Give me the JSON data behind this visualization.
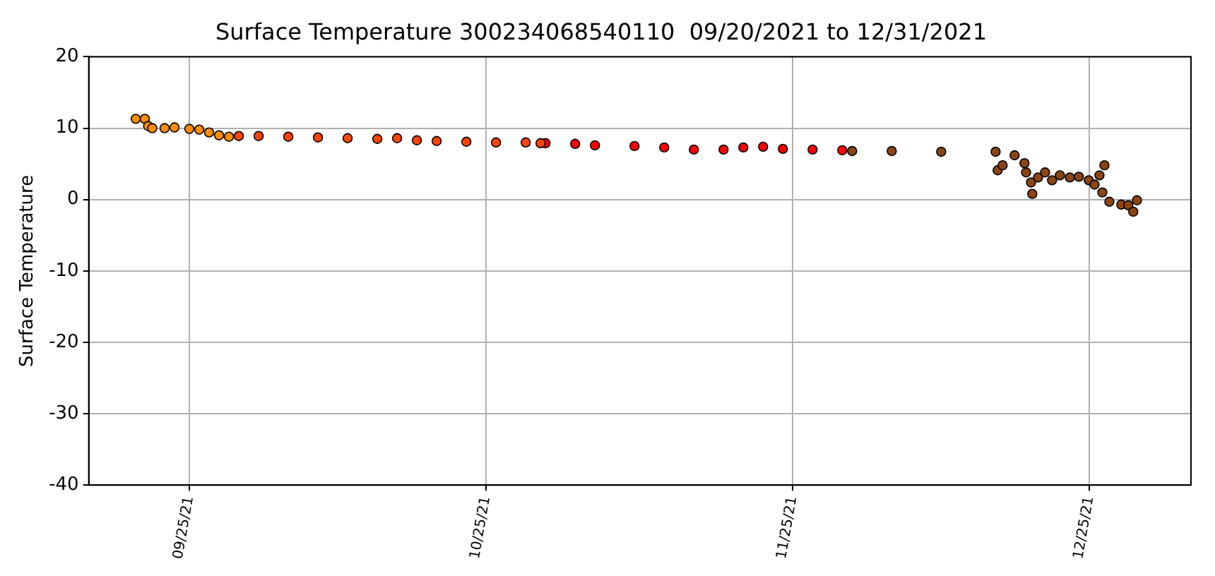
{
  "chart_data": {
    "type": "scatter",
    "title": "Surface Temperature 300234068540110  09/20/2021 to 12/31/2021",
    "ylabel": "Surface Temperature",
    "xlim": [
      "2021-09-14T20:00",
      "2022-01-04T06:00"
    ],
    "xticks": [
      {
        "value": "2021-09-25",
        "label": "09/25/21"
      },
      {
        "value": "2021-10-25",
        "label": "10/25/21"
      },
      {
        "value": "2021-11-25",
        "label": "11/25/21"
      },
      {
        "value": "2021-12-25",
        "label": "12/25/21"
      }
    ],
    "ylim": [
      -40,
      20
    ],
    "yticks": [
      -40,
      -30,
      -20,
      -10,
      0,
      10,
      20
    ],
    "grid": true,
    "marker": "circle",
    "series": [
      {
        "color": "#ff8c00",
        "x": [
          "2021-09-19T14:00",
          "2021-09-20T12:00",
          "2021-09-20T20:00",
          "2021-09-21T06:00",
          "2021-09-22T12:00",
          "2021-09-23T12:00",
          "2021-09-25",
          "2021-09-26",
          "2021-09-27",
          "2021-09-28",
          "2021-09-29"
        ],
        "values": [
          11.3,
          11.3,
          10.3,
          10.0,
          10.0,
          10.1,
          9.9,
          9.8,
          9.4,
          9.0,
          8.8
        ]
      },
      {
        "color": "#ff4500",
        "x": [
          "2021-09-30",
          "2021-10-02",
          "2021-10-05",
          "2021-10-08",
          "2021-10-11",
          "2021-10-14",
          "2021-10-16",
          "2021-10-18",
          "2021-10-20",
          "2021-10-23",
          "2021-10-26",
          "2021-10-29",
          "2021-10-30T12:00"
        ],
        "values": [
          8.9,
          8.9,
          8.8,
          8.7,
          8.6,
          8.5,
          8.6,
          8.3,
          8.2,
          8.1,
          8.0,
          8.0,
          7.9
        ]
      },
      {
        "color": "#ff0000",
        "x": [
          "2021-10-31",
          "2021-11-03",
          "2021-11-05",
          "2021-11-09",
          "2021-11-12",
          "2021-11-15",
          "2021-11-18",
          "2021-11-20",
          "2021-11-22",
          "2021-11-24",
          "2021-11-27",
          "2021-11-30"
        ],
        "values": [
          7.9,
          7.8,
          7.6,
          7.5,
          7.3,
          7.0,
          7.0,
          7.3,
          7.4,
          7.1,
          7.0,
          6.9
        ]
      },
      {
        "color": "#8b4513",
        "x": [
          "2021-12-01",
          "2021-12-05",
          "2021-12-10",
          "2021-12-15T12:00",
          "2021-12-15T17:00",
          "2021-12-16T05:00",
          "2021-12-17T10:00",
          "2021-12-18T10:00",
          "2021-12-18T14:00",
          "2021-12-19T02:00",
          "2021-12-19T05:00",
          "2021-12-19T19:00",
          "2021-12-20T12:00",
          "2021-12-21T05:00",
          "2021-12-22",
          "2021-12-23",
          "2021-12-23T22:00",
          "2021-12-24T22:00",
          "2021-12-25T12:00",
          "2021-12-26",
          "2021-12-26T12:00",
          "2021-12-26T07:00",
          "2021-12-27",
          "2021-12-28T05:00",
          "2021-12-28T22:00",
          "2021-12-29T10:00",
          "2021-12-29T19:00"
        ],
        "values": [
          6.8,
          6.8,
          6.7,
          6.7,
          4.1,
          4.8,
          6.2,
          5.1,
          3.8,
          2.4,
          0.8,
          3.1,
          3.8,
          2.7,
          3.4,
          3.1,
          3.2,
          2.7,
          2.1,
          3.4,
          4.8,
          1.0,
          -0.3,
          -0.7,
          -0.8,
          -1.7,
          -0.1
        ]
      }
    ]
  }
}
